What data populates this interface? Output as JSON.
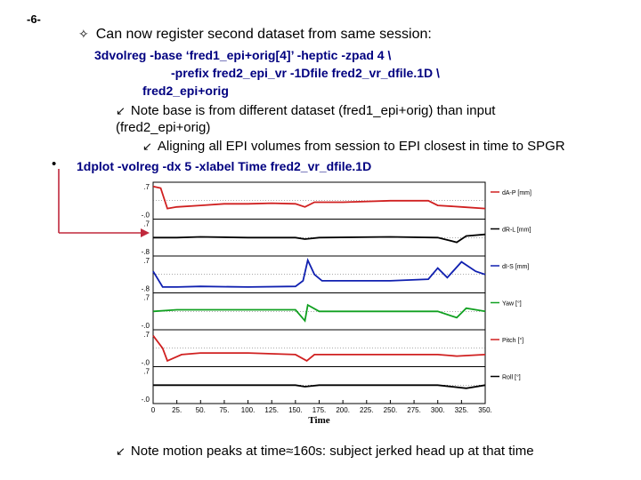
{
  "slide": {
    "page_number": "-6-",
    "line1_bullet": "✧",
    "line1": "Can now register second dataset from same session:",
    "cmd_line1": "3dvolreg -base ‘fred1_epi+orig[4]’ -heptic -zpad 4  \\",
    "cmd_line2": "-prefix fred2_epi_vr -1Dfile fred2_vr_dfile.1D \\",
    "cmd_line3": "fred2_epi+orig",
    "arrow_bullet": "↙",
    "note1_a": "Note base is from different dataset (fred1_epi+orig) than input",
    "note1_b": "(fred2_epi+orig)",
    "note2": "Aligning all EPI volumes from session to EPI closest in time to SPGR",
    "bullet": "•",
    "cmd2": "1dplot -volreg -dx 5 -xlabel Time fred2_vr_dfile.1D",
    "final_note": "Note motion peaks at time≈160s: subject jerked head up at that time",
    "callout_color": "#c0283c"
  },
  "chart_data": {
    "type": "line",
    "xlabel": "Time",
    "xlim": [
      0,
      350
    ],
    "x_ticks": [
      "0",
      "25.",
      "50.",
      "75.",
      "100.",
      "125.",
      "150.",
      "175.",
      "200.",
      "225.",
      "250.",
      "275.",
      "300.",
      "325.",
      "350."
    ],
    "panels": [
      {
        "name": "dA-P [mm]",
        "color": "#d02020",
        "y_top": ".7",
        "y_bot": "-.0",
        "points": [
          [
            0,
            0.95
          ],
          [
            8,
            0.9
          ],
          [
            15,
            0.25
          ],
          [
            25,
            0.3
          ],
          [
            50,
            0.35
          ],
          [
            75,
            0.4
          ],
          [
            100,
            0.4
          ],
          [
            125,
            0.42
          ],
          [
            150,
            0.4
          ],
          [
            160,
            0.3
          ],
          [
            170,
            0.45
          ],
          [
            200,
            0.45
          ],
          [
            250,
            0.5
          ],
          [
            290,
            0.5
          ],
          [
            300,
            0.35
          ],
          [
            325,
            0.3
          ],
          [
            350,
            0.25
          ]
        ]
      },
      {
        "name": "dR-L [mm]",
        "color": "#000000",
        "y_top": ".7",
        "y_bot": "-.8",
        "points": [
          [
            0,
            0.5
          ],
          [
            25,
            0.5
          ],
          [
            50,
            0.52
          ],
          [
            100,
            0.5
          ],
          [
            150,
            0.5
          ],
          [
            160,
            0.45
          ],
          [
            175,
            0.5
          ],
          [
            250,
            0.52
          ],
          [
            300,
            0.5
          ],
          [
            320,
            0.35
          ],
          [
            330,
            0.55
          ],
          [
            350,
            0.6
          ]
        ]
      },
      {
        "name": "dI-S [mm]",
        "color": "#1020b0",
        "y_top": ".7",
        "y_bot": "-.8",
        "points": [
          [
            0,
            0.6
          ],
          [
            10,
            0.1
          ],
          [
            25,
            0.1
          ],
          [
            50,
            0.12
          ],
          [
            100,
            0.1
          ],
          [
            150,
            0.12
          ],
          [
            158,
            0.3
          ],
          [
            163,
            0.95
          ],
          [
            170,
            0.5
          ],
          [
            178,
            0.3
          ],
          [
            200,
            0.3
          ],
          [
            250,
            0.3
          ],
          [
            290,
            0.35
          ],
          [
            300,
            0.7
          ],
          [
            310,
            0.4
          ],
          [
            325,
            0.9
          ],
          [
            340,
            0.6
          ],
          [
            350,
            0.5
          ]
        ]
      },
      {
        "name": "Yaw [°]",
        "color": "#10a020",
        "y_top": ".7",
        "y_bot": "-.0",
        "points": [
          [
            0,
            0.5
          ],
          [
            25,
            0.55
          ],
          [
            50,
            0.55
          ],
          [
            100,
            0.55
          ],
          [
            150,
            0.55
          ],
          [
            160,
            0.2
          ],
          [
            163,
            0.7
          ],
          [
            175,
            0.5
          ],
          [
            250,
            0.5
          ],
          [
            300,
            0.5
          ],
          [
            320,
            0.3
          ],
          [
            330,
            0.6
          ],
          [
            350,
            0.5
          ]
        ]
      },
      {
        "name": "Pitch [°]",
        "color": "#d02020",
        "y_top": ".7",
        "y_bot": "-.0",
        "points": [
          [
            0,
            0.9
          ],
          [
            10,
            0.5
          ],
          [
            15,
            0.1
          ],
          [
            30,
            0.3
          ],
          [
            50,
            0.35
          ],
          [
            100,
            0.35
          ],
          [
            150,
            0.3
          ],
          [
            162,
            0.1
          ],
          [
            170,
            0.3
          ],
          [
            250,
            0.3
          ],
          [
            300,
            0.3
          ],
          [
            320,
            0.25
          ],
          [
            350,
            0.3
          ]
        ]
      },
      {
        "name": "Roll [°]",
        "color": "#000000",
        "y_top": ".7",
        "y_bot": "-.0",
        "points": [
          [
            0,
            0.5
          ],
          [
            50,
            0.5
          ],
          [
            100,
            0.5
          ],
          [
            150,
            0.5
          ],
          [
            160,
            0.45
          ],
          [
            175,
            0.5
          ],
          [
            250,
            0.5
          ],
          [
            300,
            0.5
          ],
          [
            330,
            0.4
          ],
          [
            350,
            0.5
          ]
        ]
      }
    ]
  }
}
